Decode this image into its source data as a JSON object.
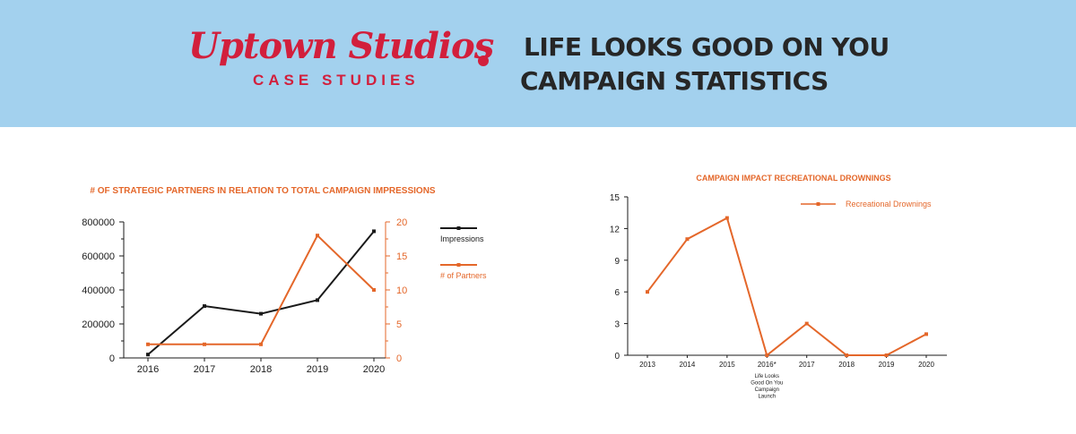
{
  "header": {
    "logo_name": "Uptown Studios",
    "logo_tagline": "CASE STUDIES",
    "title_line1": "LIFE LOOKS GOOD ON YOU",
    "title_line2": "CAMPAIGN STATISTICS",
    "colors": {
      "banner": "#a3d1ee",
      "brand_red": "#d21f3c",
      "title_text": "#262626"
    }
  },
  "chart_data": [
    {
      "type": "line",
      "title": "# OF STRATEGIC PARTNERS IN RELATION TO TOTAL CAMPAIGN IMPRESSIONS",
      "categories": [
        "2016",
        "2017",
        "2018",
        "2019",
        "2020"
      ],
      "series": [
        {
          "name": "Impressions",
          "axis": "left",
          "color": "#1a1a1a",
          "values": [
            20000,
            305000,
            260000,
            340000,
            745000
          ]
        },
        {
          "name": "# of Partners",
          "axis": "right",
          "color": "#e4672a",
          "values": [
            2,
            2,
            2,
            18,
            10
          ]
        }
      ],
      "y_left": {
        "min": 0,
        "max": 800000,
        "ticks": [
          "0",
          "200000",
          "400000",
          "600000",
          "800000"
        ],
        "color": "#1a1a1a"
      },
      "y_right": {
        "min": 0,
        "max": 20,
        "ticks": [
          "0",
          "5",
          "10",
          "15",
          "20"
        ],
        "color": "#e4672a"
      },
      "legend": "right",
      "grid": false
    },
    {
      "type": "line",
      "title": "CAMPAIGN IMPACT RECREATIONAL DROWNINGS",
      "categories": [
        "2013",
        "2014",
        "2015",
        "2016*",
        "2017",
        "2018",
        "2019",
        "2020"
      ],
      "series": [
        {
          "name": "Recreational Drownings",
          "color": "#e4672a",
          "values": [
            6,
            11,
            13,
            0,
            3,
            0,
            0,
            2
          ]
        }
      ],
      "y": {
        "min": 0,
        "max": 15,
        "ticks": [
          "0",
          "3",
          "6",
          "9",
          "12",
          "15"
        ]
      },
      "annotation": {
        "category": "2016*",
        "lines": [
          "Life Looks",
          "Good On You",
          "Campaign",
          "Launch"
        ]
      },
      "legend": "top-right",
      "grid": false
    }
  ]
}
